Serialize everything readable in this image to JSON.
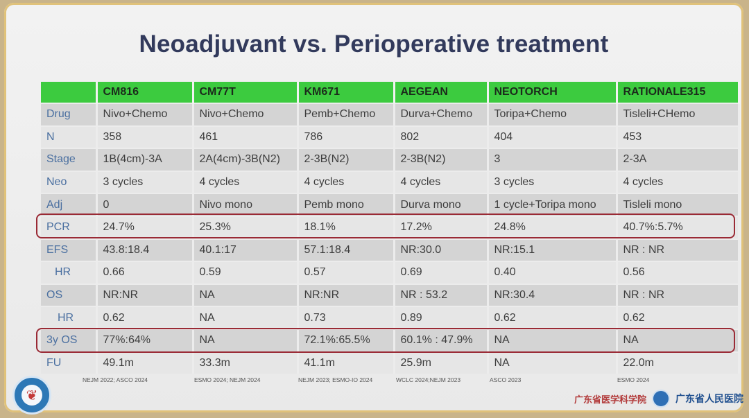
{
  "slide": {
    "title": "Neoadjuvant vs. Perioperative treatment"
  },
  "table": {
    "headers": [
      "",
      "CM816",
      "CM77T",
      "KM671",
      "AEGEAN",
      "NEOTORCH",
      "RATIONALE315"
    ],
    "rows": [
      {
        "label": "Drug",
        "cells": [
          "Nivo+Chemo",
          "Nivo+Chemo",
          "Pemb+Chemo",
          "Durva+Chemo",
          "Toripa+Chemo",
          "Tisleli+CHemo"
        ]
      },
      {
        "label": "N",
        "cells": [
          "358",
          "461",
          "786",
          "802",
          "404",
          "453"
        ]
      },
      {
        "label": "Stage",
        "cells": [
          "1B(4cm)-3A",
          "2A(4cm)-3B(N2)",
          "2-3B(N2)",
          "2-3B(N2)",
          "3",
          "2-3A"
        ]
      },
      {
        "label": "Neo",
        "cells": [
          "3 cycles",
          "4 cycles",
          "4 cycles",
          "4 cycles",
          "3 cycles",
          "4 cycles"
        ]
      },
      {
        "label": "Adj",
        "cells": [
          "0",
          "Nivo mono",
          "Pemb mono",
          "Durva mono",
          "1 cycle+Toripa mono",
          "Tisleli mono"
        ]
      },
      {
        "label": "PCR",
        "cells": [
          "24.7%",
          "25.3%",
          "18.1%",
          "17.2%",
          "24.8%",
          "40.7%:5.7%"
        ]
      },
      {
        "label": "EFS",
        "cells": [
          "43.8:18.4",
          "40.1:17",
          "57.1:18.4",
          "NR:30.0",
          "NR:15.1",
          "NR : NR"
        ]
      },
      {
        "label": "HR",
        "cells": [
          "0.66",
          "0.59",
          "0.57",
          "0.69",
          "0.40",
          "0.56"
        ]
      },
      {
        "label": "OS",
        "cells": [
          "NR:NR",
          "NA",
          "NR:NR",
          "NR : 53.2",
          "NR:30.4",
          "NR : NR"
        ]
      },
      {
        "label": "HR",
        "cells": [
          "0.62",
          "NA",
          "0.73",
          "0.89",
          "0.62",
          "0.62"
        ]
      },
      {
        "label": "3y OS",
        "cells": [
          "77%:64%",
          "NA",
          "72.1%:65.5%",
          "60.1% : 47.9%",
          "NA",
          "NA"
        ]
      },
      {
        "label": "FU",
        "cells": [
          "49.1m",
          "33.3m",
          "41.1m",
          "25.9m",
          "NA",
          "22.0m"
        ]
      }
    ]
  },
  "citations": [
    "NEJM 2022; ASCO 2024",
    "ESMO 2024; NEJM 2024",
    "NEJM 2023; ESMO-IO 2024",
    "WCLC 2024;NEJM 2023",
    "ASCO 2023",
    "ESMO 2024"
  ],
  "footer": {
    "org_left": "广东省医学科学院",
    "org_right": "广东省人民医院"
  },
  "colors": {
    "header_green": "#3ccb3f",
    "highlight_border": "#9a2a35",
    "title": "#323a5c"
  }
}
